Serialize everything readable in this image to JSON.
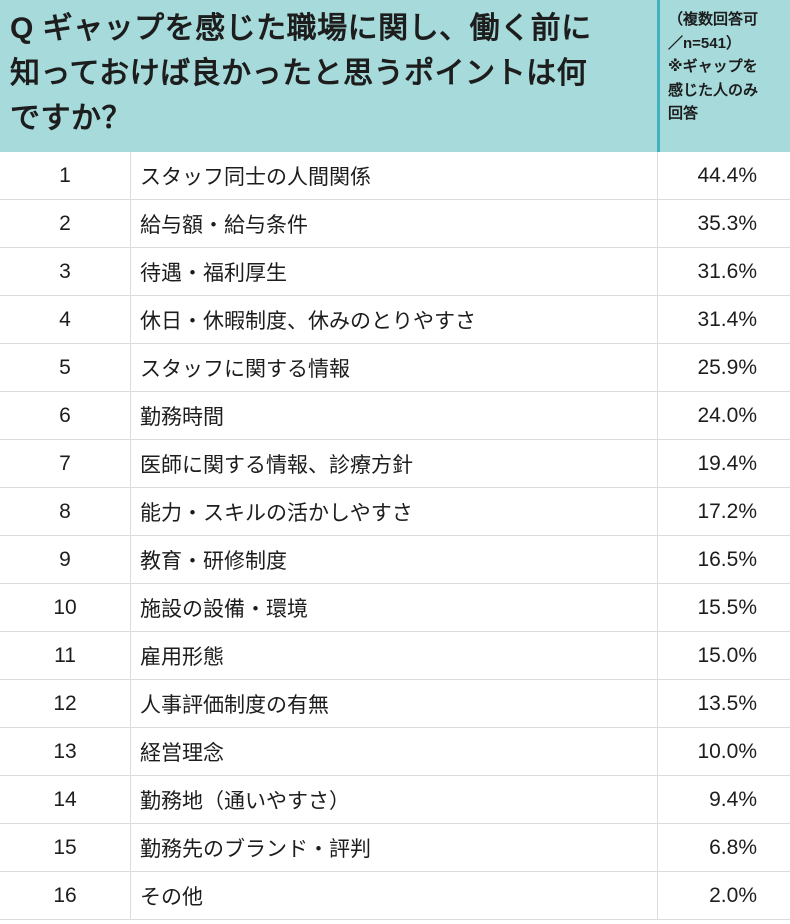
{
  "header": {
    "question_lines": [
      "Q ギャップを感じた職場に関し、働く前に",
      "知っておけば良かったと思うポイントは何",
      "ですか？"
    ],
    "note_lines": [
      "（複数回答可",
      "／n=541）",
      "※ギャップを",
      "感じた人のみ",
      "回答"
    ]
  },
  "table": {
    "rows": [
      {
        "rank": "1",
        "label": "スタッフ同士の人間関係",
        "value": "44.4%"
      },
      {
        "rank": "2",
        "label": "給与額・給与条件",
        "value": "35.3%"
      },
      {
        "rank": "3",
        "label": "待遇・福利厚生",
        "value": "31.6%"
      },
      {
        "rank": "4",
        "label": "休日・休暇制度、休みのとりやすさ",
        "value": "31.4%"
      },
      {
        "rank": "5",
        "label": "スタッフに関する情報",
        "value": "25.9%"
      },
      {
        "rank": "6",
        "label": "勤務時間",
        "value": "24.0%"
      },
      {
        "rank": "7",
        "label": "医師に関する情報、診療方針",
        "value": "19.4%"
      },
      {
        "rank": "8",
        "label": "能力・スキルの活かしやすさ",
        "value": "17.2%"
      },
      {
        "rank": "9",
        "label": "教育・研修制度",
        "value": "16.5%"
      },
      {
        "rank": "10",
        "label": "施設の設備・環境",
        "value": "15.5%"
      },
      {
        "rank": "11",
        "label": "雇用形態",
        "value": "15.0%"
      },
      {
        "rank": "12",
        "label": "人事評価制度の有無",
        "value": "13.5%"
      },
      {
        "rank": "13",
        "label": "経営理念",
        "value": "10.0%"
      },
      {
        "rank": "14",
        "label": "勤務地（通いやすさ）",
        "value": "9.4%"
      },
      {
        "rank": "15",
        "label": "勤務先のブランド・評判",
        "value": "6.8%"
      },
      {
        "rank": "16",
        "label": "その他",
        "value": "2.0%"
      }
    ]
  },
  "colors": {
    "header_bg": "#a6dadb",
    "header_divider": "#42b1c1",
    "row_border": "#dcdcdc",
    "text": "#1d1d1d"
  },
  "chart_data": {
    "type": "table",
    "title": "Q ギャップを感じた職場に関し、働く前に知っておけば良かったと思うポイントは何ですか？",
    "note": "（複数回答可／n=541）※ギャップを感じた人のみ回答",
    "n": 541,
    "unit": "%",
    "categories": [
      "スタッフ同士の人間関係",
      "給与額・給与条件",
      "待遇・福利厚生",
      "休日・休暇制度、休みのとりやすさ",
      "スタッフに関する情報",
      "勤務時間",
      "医師に関する情報、診療方針",
      "能力・スキルの活かしやすさ",
      "教育・研修制度",
      "施設の設備・環境",
      "雇用形態",
      "人事評価制度の有無",
      "経営理念",
      "勤務地（通いやすさ）",
      "勤務先のブランド・評判",
      "その他"
    ],
    "values": [
      44.4,
      35.3,
      31.6,
      31.4,
      25.9,
      24.0,
      19.4,
      17.2,
      16.5,
      15.5,
      15.0,
      13.5,
      10.0,
      9.4,
      6.8,
      2.0
    ]
  }
}
